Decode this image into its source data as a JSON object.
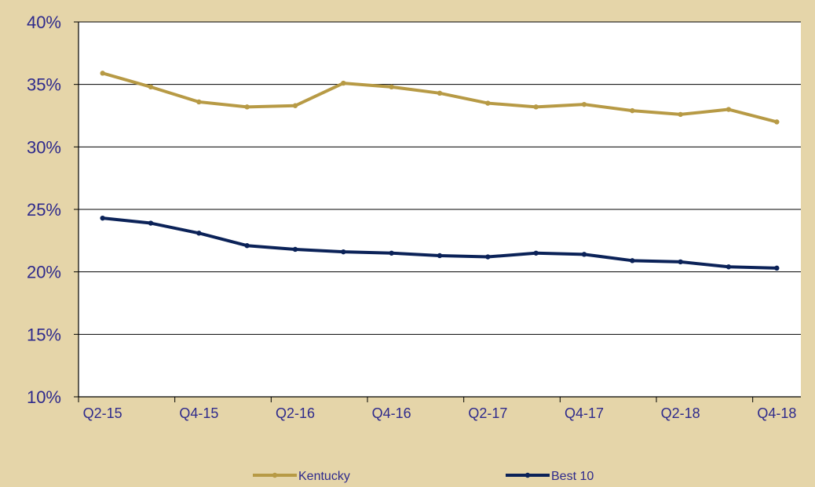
{
  "chart_data": {
    "type": "line",
    "x": [
      "Q2-15",
      "Q3-15",
      "Q4-15",
      "Q1-16",
      "Q2-16",
      "Q3-16",
      "Q4-16",
      "Q1-17",
      "Q2-17",
      "Q3-17",
      "Q4-17",
      "Q1-18",
      "Q2-18",
      "Q3-18",
      "Q4-18"
    ],
    "x_tick_labels": [
      "Q2-15",
      "Q4-15",
      "Q2-16",
      "Q4-16",
      "Q2-17",
      "Q4-17",
      "Q2-18",
      "Q4-18"
    ],
    "y_tick_labels": [
      "10%",
      "15%",
      "20%",
      "25%",
      "30%",
      "35%",
      "40%"
    ],
    "ylim": [
      10,
      40
    ],
    "y_ticks": [
      10,
      15,
      20,
      25,
      30,
      35,
      40
    ],
    "grid": "horizontal",
    "legend": "bottom",
    "series": [
      {
        "name": "Kentucky",
        "color": "#B79A45",
        "values": [
          35.9,
          34.8,
          33.6,
          33.2,
          33.3,
          35.1,
          34.8,
          34.3,
          33.5,
          33.2,
          33.4,
          32.9,
          32.6,
          33.0,
          32.0
        ]
      },
      {
        "name": "Best 10",
        "color": "#0B2258",
        "values": [
          24.3,
          23.9,
          23.1,
          22.1,
          21.8,
          21.6,
          21.5,
          21.3,
          21.2,
          21.5,
          21.4,
          20.9,
          20.8,
          20.4,
          20.3
        ]
      }
    ]
  }
}
